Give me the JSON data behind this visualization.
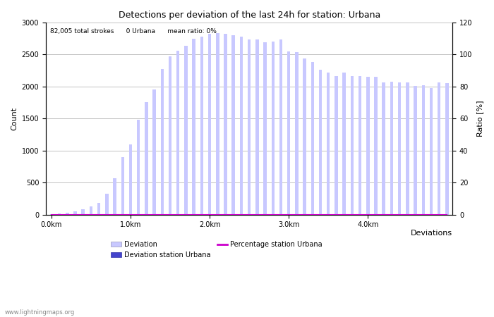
{
  "title": "Detections per deviation of the last 24h for station: Urbana",
  "subtitle": "82,005 total strokes      0 Urbana      mean ratio: 0%",
  "xlabel": "Deviations",
  "ylabel_left": "Count",
  "ylabel_right": "Ratio [%]",
  "ylim_left": [
    0,
    3000
  ],
  "ylim_right": [
    0,
    120
  ],
  "yticks_left": [
    0,
    500,
    1000,
    1500,
    2000,
    2500,
    3000
  ],
  "yticks_right": [
    0,
    20,
    40,
    60,
    80,
    100,
    120
  ],
  "xtick_labels": [
    "0.0km",
    "1.0km",
    "2.0km",
    "3.0km",
    "4.0km"
  ],
  "xtick_positions": [
    0,
    10,
    20,
    30,
    40
  ],
  "bar_color": "#c8c8ff",
  "station_bar_color": "#4444cc",
  "line_color": "#cc00cc",
  "watermark": "www.lightningmaps.org",
  "bar_values": [
    5,
    15,
    25,
    55,
    80,
    130,
    180,
    330,
    570,
    900,
    1100,
    1480,
    1760,
    1960,
    2270,
    2470,
    2560,
    2640,
    2750,
    2780,
    2820,
    2830,
    2820,
    2800,
    2780,
    2730,
    2730,
    2690,
    2700,
    2740,
    2550,
    2540,
    2440,
    2380,
    2260,
    2220,
    2160,
    2220,
    2160,
    2160,
    2150,
    2150,
    2060,
    2080,
    2060,
    2060,
    2010,
    2020,
    1980,
    2060,
    2050
  ],
  "station_bar_values": [
    0,
    0,
    0,
    0,
    0,
    0,
    0,
    0,
    0,
    0,
    0,
    0,
    0,
    0,
    0,
    0,
    0,
    0,
    0,
    0,
    0,
    0,
    0,
    0,
    0,
    0,
    0,
    0,
    0,
    0,
    0,
    0,
    0,
    0,
    0,
    0,
    0,
    0,
    0,
    0,
    0,
    0,
    0,
    0,
    0,
    0,
    0,
    0,
    0,
    0,
    0
  ],
  "line_values": [
    0,
    0,
    0,
    0,
    0,
    0,
    0,
    0,
    0,
    0,
    0,
    0,
    0,
    0,
    0,
    0,
    0,
    0,
    0,
    0,
    0,
    0,
    0,
    0,
    0,
    0,
    0,
    0,
    0,
    0,
    0,
    0,
    0,
    0,
    0,
    0,
    0,
    0,
    0,
    0,
    0,
    0,
    0,
    0,
    0,
    0,
    0,
    0,
    0,
    0,
    0
  ]
}
